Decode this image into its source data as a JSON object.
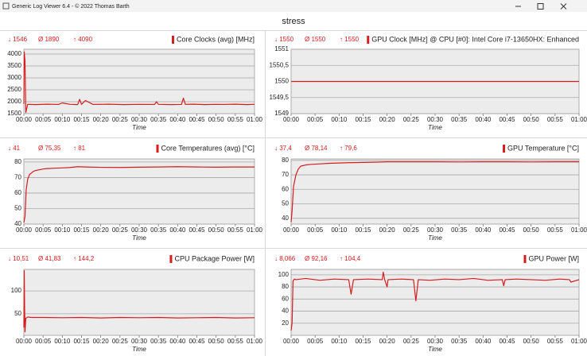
{
  "window": {
    "title": "Generic Log Viewer 6.4 - © 2022 Thomas Barth"
  },
  "page_title": "stress",
  "chart_data": [
    {
      "type": "line",
      "title": "Core Clocks (avg) [MHz]",
      "stats": [
        "↓ 1546",
        "Ø 1890",
        "↑ 4090"
      ],
      "xlabel": "Time",
      "color": "#d61c1c",
      "grid": true,
      "x": [
        0,
        0.1,
        0.3,
        0.5,
        1,
        3,
        6,
        9,
        10,
        12,
        14,
        14.5,
        15,
        16,
        18,
        22,
        26,
        30,
        34,
        34.5,
        35,
        38,
        41,
        41.5,
        42,
        44,
        47,
        50,
        52,
        55,
        58,
        60
      ],
      "values": [
        1900,
        4090,
        3700,
        1546,
        1890,
        1880,
        1895,
        1885,
        1950,
        1890,
        1880,
        2100,
        1890,
        2050,
        1885,
        1895,
        1880,
        1890,
        1885,
        2000,
        1890,
        1880,
        1885,
        2150,
        1890,
        1895,
        1880,
        1890,
        1885,
        1895,
        1880,
        1890
      ],
      "xlim": [
        0,
        60
      ],
      "ylim": [
        1500,
        4200
      ],
      "xticks": [
        {
          "value": 0,
          "label": "00:00"
        },
        {
          "value": 5,
          "label": "00:05"
        },
        {
          "value": 10,
          "label": "00:10"
        },
        {
          "value": 15,
          "label": "00:15"
        },
        {
          "value": 20,
          "label": "00:20"
        },
        {
          "value": 25,
          "label": "00:25"
        },
        {
          "value": 30,
          "label": "00:30"
        },
        {
          "value": 35,
          "label": "00:35"
        },
        {
          "value": 40,
          "label": "00:40"
        },
        {
          "value": 45,
          "label": "00:45"
        },
        {
          "value": 50,
          "label": "00:50"
        },
        {
          "value": 55,
          "label": "00:55"
        },
        {
          "value": 60,
          "label": "01:00"
        }
      ],
      "yticks": [
        1500,
        2000,
        2500,
        3000,
        3500,
        4000
      ]
    },
    {
      "type": "line",
      "title": "GPU Clock [MHz] @ CPU [#0]: Intel Core i7-13650HX: Enhanced",
      "stats": [
        "↓ 1550",
        "Ø 1550",
        "↑ 1550"
      ],
      "xlabel": "Time",
      "color": "#d61c1c",
      "grid": true,
      "x": [
        0,
        60
      ],
      "values": [
        1550,
        1550
      ],
      "xlim": [
        0,
        60
      ],
      "ylim": [
        1549,
        1551
      ],
      "xticks": [
        {
          "value": 0,
          "label": "00:00"
        },
        {
          "value": 5,
          "label": "00:05"
        },
        {
          "value": 10,
          "label": "00:10"
        },
        {
          "value": 15,
          "label": "00:15"
        },
        {
          "value": 20,
          "label": "00:20"
        },
        {
          "value": 25,
          "label": "00:25"
        },
        {
          "value": 30,
          "label": "00:30"
        },
        {
          "value": 35,
          "label": "00:35"
        },
        {
          "value": 40,
          "label": "00:40"
        },
        {
          "value": 45,
          "label": "00:45"
        },
        {
          "value": 50,
          "label": "00:50"
        },
        {
          "value": 55,
          "label": "00:55"
        },
        {
          "value": 60,
          "label": "01:00"
        }
      ],
      "yticks": [
        1549,
        {
          "value": 1549.5,
          "label": "1549,5"
        },
        1550,
        {
          "value": 1550.5,
          "label": "1550,5"
        },
        1551
      ]
    },
    {
      "type": "line",
      "title": "Core Temperatures (avg) [°C]",
      "stats": [
        "↓ 41",
        "Ø 75,35",
        "↑ 81"
      ],
      "xlabel": "Time",
      "color": "#d61c1c",
      "grid": true,
      "x": [
        0,
        0.3,
        0.6,
        1,
        1.5,
        2,
        2.5,
        3,
        4,
        5,
        6,
        8,
        10,
        12,
        14,
        16,
        20,
        25,
        30,
        35,
        40,
        45,
        50,
        55,
        60
      ],
      "values": [
        41,
        45,
        62,
        69,
        72,
        73,
        74,
        74.5,
        75,
        75.5,
        75.8,
        76,
        76.2,
        76.5,
        77,
        76.8,
        76.6,
        76.5,
        76.7,
        76.8,
        77,
        76.8,
        76.7,
        76.8,
        76.8
      ],
      "xlim": [
        0,
        60
      ],
      "ylim": [
        40,
        82
      ],
      "xticks": [
        {
          "value": 0,
          "label": "00:00"
        },
        {
          "value": 5,
          "label": "00:05"
        },
        {
          "value": 10,
          "label": "00:10"
        },
        {
          "value": 15,
          "label": "00:15"
        },
        {
          "value": 20,
          "label": "00:20"
        },
        {
          "value": 25,
          "label": "00:25"
        },
        {
          "value": 30,
          "label": "00:30"
        },
        {
          "value": 35,
          "label": "00:35"
        },
        {
          "value": 40,
          "label": "00:40"
        },
        {
          "value": 45,
          "label": "00:45"
        },
        {
          "value": 50,
          "label": "00:50"
        },
        {
          "value": 55,
          "label": "00:55"
        },
        {
          "value": 60,
          "label": "01:00"
        }
      ],
      "yticks": [
        40,
        50,
        60,
        70,
        80
      ]
    },
    {
      "type": "line",
      "title": "GPU Temperature [°C]",
      "stats": [
        "↓ 37,4",
        "Ø 78,14",
        "↑ 79,6"
      ],
      "xlabel": "Time",
      "color": "#d61c1c",
      "grid": true,
      "x": [
        0,
        0.2,
        0.5,
        1,
        1.5,
        2,
        3,
        4,
        6,
        8,
        10,
        12,
        15,
        18,
        20,
        25,
        30,
        35,
        40,
        45,
        50,
        55,
        60
      ],
      "values": [
        37.4,
        45,
        62,
        70,
        74,
        76,
        76.8,
        77.2,
        77.6,
        78,
        78.2,
        78.4,
        78.6,
        78.8,
        79,
        79,
        79,
        78.9,
        79,
        79,
        78.9,
        79,
        79
      ],
      "xlim": [
        0,
        60
      ],
      "ylim": [
        36,
        81
      ],
      "xticks": [
        {
          "value": 0,
          "label": "00:00"
        },
        {
          "value": 5,
          "label": "00:05"
        },
        {
          "value": 10,
          "label": "00:10"
        },
        {
          "value": 15,
          "label": "00:15"
        },
        {
          "value": 20,
          "label": "00:20"
        },
        {
          "value": 25,
          "label": "00:25"
        },
        {
          "value": 30,
          "label": "00:30"
        },
        {
          "value": 35,
          "label": "00:35"
        },
        {
          "value": 40,
          "label": "00:40"
        },
        {
          "value": 45,
          "label": "00:45"
        },
        {
          "value": 50,
          "label": "00:50"
        },
        {
          "value": 55,
          "label": "00:55"
        },
        {
          "value": 60,
          "label": "01:00"
        }
      ],
      "yticks": [
        40,
        50,
        60,
        70,
        80
      ]
    },
    {
      "type": "line",
      "title": "CPU Package Power [W]",
      "stats": [
        "↓ 10,51",
        "Ø 41,83",
        "↑ 144,2"
      ],
      "xlabel": "Time",
      "color": "#d61c1c",
      "grid": true,
      "x": [
        0,
        0.1,
        0.2,
        0.3,
        0.5,
        1,
        2,
        5,
        10,
        15,
        20,
        25,
        30,
        35,
        40,
        45,
        50,
        55,
        60
      ],
      "values": [
        20,
        144.2,
        60,
        10.51,
        40,
        43,
        42,
        42,
        41.5,
        42,
        41,
        42,
        41.5,
        42,
        41,
        41.5,
        42,
        41,
        41.5
      ],
      "xlim": [
        0,
        60
      ],
      "ylim": [
        3,
        147
      ],
      "xticks": [
        {
          "value": 0,
          "label": "00:00"
        },
        {
          "value": 5,
          "label": "00:05"
        },
        {
          "value": 10,
          "label": "00:10"
        },
        {
          "value": 15,
          "label": "00:15"
        },
        {
          "value": 20,
          "label": "00:20"
        },
        {
          "value": 25,
          "label": "00:25"
        },
        {
          "value": 30,
          "label": "00:30"
        },
        {
          "value": 35,
          "label": "00:35"
        },
        {
          "value": 40,
          "label": "00:40"
        },
        {
          "value": 45,
          "label": "00:45"
        },
        {
          "value": 50,
          "label": "00:50"
        },
        {
          "value": 55,
          "label": "00:55"
        },
        {
          "value": 60,
          "label": "01:00"
        }
      ],
      "yticks": [
        50,
        100
      ]
    },
    {
      "type": "line",
      "title": "GPU Power [W]",
      "stats": [
        "↓ 8,066",
        "Ø 92,16",
        "↑ 104,4"
      ],
      "xlabel": "Time",
      "color": "#d61c1c",
      "grid": true,
      "x": [
        0,
        0.2,
        0.4,
        0.7,
        1,
        3,
        6,
        9,
        12,
        12.5,
        13,
        16,
        19,
        19.2,
        19.5,
        20,
        20.2,
        23,
        25.5,
        26,
        26.5,
        29,
        32,
        35,
        38,
        41,
        44,
        44.3,
        44.6,
        47,
        50,
        53,
        56,
        58,
        58.3,
        60
      ],
      "values": [
        8.066,
        20,
        90,
        93,
        92,
        94,
        91,
        93,
        92,
        68,
        92,
        93,
        92,
        104.4,
        92,
        80,
        92,
        93,
        92,
        57,
        92,
        91,
        93,
        92,
        94,
        91,
        92,
        82,
        92,
        93,
        92,
        91,
        93,
        92,
        88,
        92
      ],
      "xlim": [
        0,
        60
      ],
      "ylim": [
        0,
        109
      ],
      "xticks": [
        {
          "value": 0,
          "label": "00:00"
        },
        {
          "value": 5,
          "label": "00:05"
        },
        {
          "value": 10,
          "label": "00:10"
        },
        {
          "value": 15,
          "label": "00:15"
        },
        {
          "value": 20,
          "label": "00:20"
        },
        {
          "value": 25,
          "label": "00:25"
        },
        {
          "value": 30,
          "label": "00:30"
        },
        {
          "value": 35,
          "label": "00:35"
        },
        {
          "value": 40,
          "label": "00:40"
        },
        {
          "value": 45,
          "label": "00:45"
        },
        {
          "value": 50,
          "label": "00:50"
        },
        {
          "value": 55,
          "label": "00:55"
        },
        {
          "value": 60,
          "label": "01:00"
        }
      ],
      "yticks": [
        20,
        40,
        60,
        80,
        100
      ]
    }
  ]
}
